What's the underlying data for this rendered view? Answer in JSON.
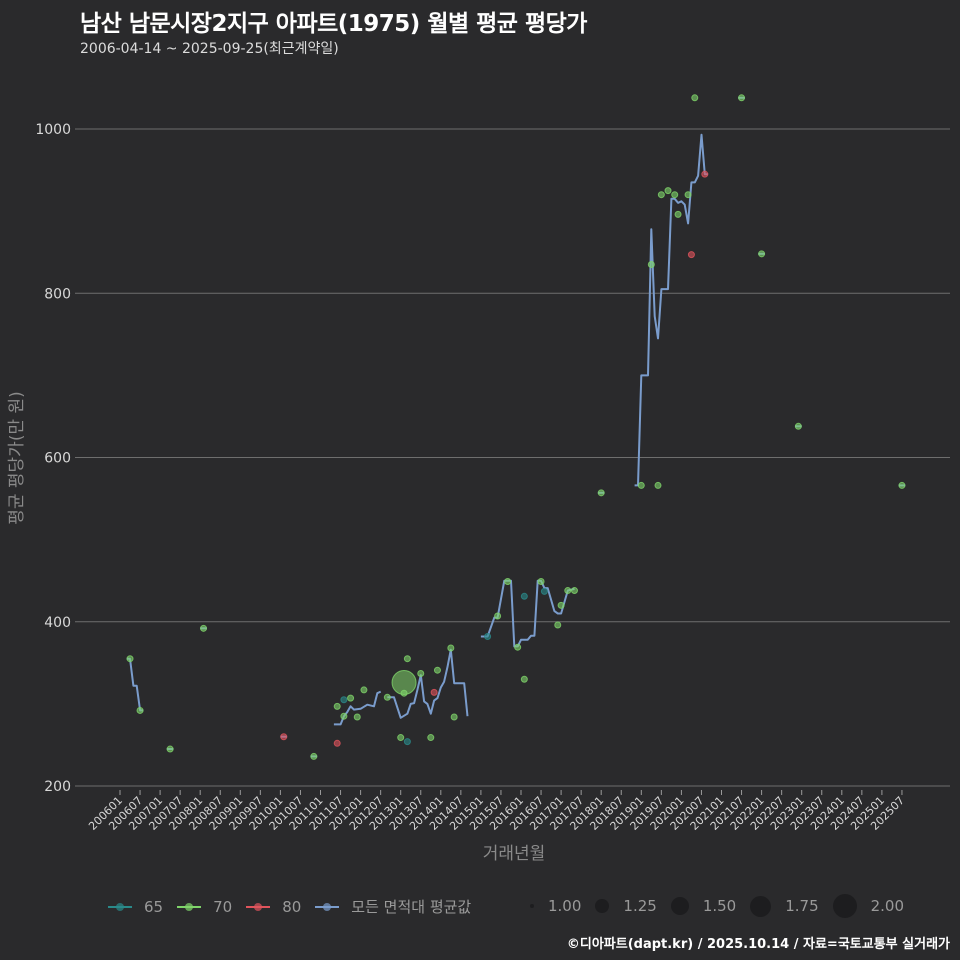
{
  "header": {
    "title": "남산 남문시장2지구 아파트(1975) 월별 평균 평당가",
    "subtitle": "2006-04-14 ~ 2025-09-25(최근계약일)"
  },
  "legend": {
    "area_items": [
      {
        "label": "65",
        "color": "#2a8a8a"
      },
      {
        "label": "70",
        "color": "#7fd46a"
      },
      {
        "label": "80",
        "color": "#e0545c"
      },
      {
        "label": "모든 면적대 평균값",
        "color": "#7a9ccc"
      }
    ],
    "size_items": [
      {
        "label": "1.00",
        "size": 4
      },
      {
        "label": "1.25",
        "size": 14
      },
      {
        "label": "1.50",
        "size": 18
      },
      {
        "label": "1.75",
        "size": 21
      },
      {
        "label": "2.00",
        "size": 24
      }
    ]
  },
  "caption": "©디아파트(dapt.kr) / 2025.10.14 / 자료=국토교통부 실거래가",
  "chart_data": {
    "type": "line+scatter",
    "title": "남산 남문시장2지구 아파트(1975) 월별 평균 평당가",
    "subtitle": "2006-04-14 ~ 2025-09-25(최근계약일)",
    "xlabel": "거래년월",
    "ylabel": "평균 평당가(만 원)",
    "ylim": [
      200,
      1050
    ],
    "yticks": [
      200,
      400,
      600,
      800,
      1000
    ],
    "grid": "horizontal major",
    "legend_position": "bottom",
    "xticks": [
      "200601",
      "200607",
      "200701",
      "200707",
      "200801",
      "200807",
      "200901",
      "200907",
      "201001",
      "201007",
      "201101",
      "201107",
      "201201",
      "201207",
      "201301",
      "201307",
      "201401",
      "201407",
      "201501",
      "201507",
      "201601",
      "201607",
      "201701",
      "201707",
      "201801",
      "201807",
      "201901",
      "201907",
      "202001",
      "202007",
      "202101",
      "202107",
      "202201",
      "202207",
      "202301",
      "202307",
      "202401",
      "202407",
      "202501",
      "202507"
    ],
    "average_line_segments": [
      [
        [
          "200603",
          355
        ],
        [
          "200604",
          355
        ],
        [
          "200605",
          322
        ],
        [
          "200606",
          322
        ],
        [
          "200607",
          292
        ],
        [
          "200608",
          292
        ]
      ],
      [
        [
          "200801",
          392
        ],
        [
          "200803",
          392
        ]
      ],
      [
        [
          "200703",
          245
        ],
        [
          "200705",
          245
        ]
      ],
      [
        [
          "201001",
          260
        ],
        [
          "201003",
          260
        ]
      ],
      [
        [
          "201010",
          236
        ],
        [
          "201012",
          236
        ]
      ],
      [
        [
          "201105",
          275
        ],
        [
          "201107",
          275
        ],
        [
          "201108",
          285
        ],
        [
          "201109",
          290
        ],
        [
          "201110",
          297
        ],
        [
          "201111",
          293
        ],
        [
          "201201",
          294
        ],
        [
          "201203",
          299
        ],
        [
          "201205",
          297
        ],
        [
          "201206",
          313
        ],
        [
          "201207",
          315
        ]
      ],
      [
        [
          "201209",
          308
        ],
        [
          "201211",
          308
        ],
        [
          "201301",
          283
        ],
        [
          "201303",
          288
        ],
        [
          "201304",
          300
        ],
        [
          "201305",
          301
        ],
        [
          "201306",
          317
        ],
        [
          "201307",
          335
        ],
        [
          "201308",
          303
        ],
        [
          "201309",
          300
        ],
        [
          "201310",
          288
        ],
        [
          "201311",
          304
        ],
        [
          "201312",
          307
        ],
        [
          "201401",
          320
        ],
        [
          "201402",
          327
        ],
        [
          "201403",
          345
        ],
        [
          "201404",
          366
        ],
        [
          "201405",
          325
        ],
        [
          "201406",
          325
        ],
        [
          "201408",
          325
        ],
        [
          "201409",
          285
        ]
      ],
      [
        [
          "201501",
          382
        ],
        [
          "201503",
          382
        ],
        [
          "201505",
          405
        ],
        [
          "201506",
          405
        ],
        [
          "201508",
          450
        ],
        [
          "201510",
          450
        ],
        [
          "201511",
          370
        ],
        [
          "201512",
          370
        ],
        [
          "201601",
          378
        ],
        [
          "201603",
          378
        ],
        [
          "201604",
          383
        ],
        [
          "201605",
          383
        ],
        [
          "201606",
          450
        ],
        [
          "201607",
          450
        ],
        [
          "201608",
          441
        ],
        [
          "201609",
          441
        ],
        [
          "201611",
          413
        ],
        [
          "201612",
          410
        ],
        [
          "201701",
          410
        ],
        [
          "201703",
          438
        ],
        [
          "201705",
          440
        ]
      ],
      [
        [
          "201712",
          557
        ],
        [
          "201802",
          557
        ]
      ],
      [
        [
          "201811",
          566
        ],
        [
          "201812",
          566
        ],
        [
          "201901",
          700
        ],
        [
          "201903",
          700
        ],
        [
          "201904",
          878
        ],
        [
          "201905",
          772
        ],
        [
          "201906",
          745
        ],
        [
          "201907",
          805
        ],
        [
          "201909",
          805
        ],
        [
          "201910",
          915
        ],
        [
          "201911",
          915
        ],
        [
          "201912",
          910
        ],
        [
          "202001",
          912
        ],
        [
          "202002",
          908
        ],
        [
          "202003",
          885
        ],
        [
          "202004",
          935
        ],
        [
          "202005",
          935
        ],
        [
          "202006",
          943
        ],
        [
          "202007",
          993
        ],
        [
          "202008",
          945
        ],
        [
          "202009",
          945
        ]
      ],
      [
        [
          "202106",
          1038
        ],
        [
          "202108",
          1038
        ]
      ],
      [
        [
          "202112",
          848
        ],
        [
          "202202",
          848
        ]
      ],
      [
        [
          "202211",
          638
        ],
        [
          "202301",
          638
        ]
      ],
      [
        [
          "202506",
          566
        ],
        [
          "202508",
          566
        ]
      ]
    ],
    "points": [
      {
        "x": "200604",
        "y": 355,
        "area": "70",
        "size": 1
      },
      {
        "x": "200607",
        "y": 292,
        "area": "70",
        "size": 1
      },
      {
        "x": "200704",
        "y": 245,
        "area": "70",
        "size": 1
      },
      {
        "x": "200802",
        "y": 392,
        "area": "70",
        "size": 1
      },
      {
        "x": "201002",
        "y": 260,
        "area": "80",
        "size": 1
      },
      {
        "x": "201011",
        "y": 236,
        "area": "70",
        "size": 1
      },
      {
        "x": "201106",
        "y": 252,
        "area": "80",
        "size": 1
      },
      {
        "x": "201106",
        "y": 297,
        "area": "70",
        "size": 1
      },
      {
        "x": "201108",
        "y": 285,
        "area": "70",
        "size": 1
      },
      {
        "x": "201108",
        "y": 305,
        "area": "65",
        "size": 1
      },
      {
        "x": "201110",
        "y": 307,
        "area": "70",
        "size": 1
      },
      {
        "x": "201112",
        "y": 284,
        "area": "70",
        "size": 1
      },
      {
        "x": "201202",
        "y": 317,
        "area": "70",
        "size": 1
      },
      {
        "x": "201209",
        "y": 308,
        "area": "70",
        "size": 1
      },
      {
        "x": "201301",
        "y": 259,
        "area": "70",
        "size": 1
      },
      {
        "x": "201302",
        "y": 326,
        "area": "70",
        "size": 2
      },
      {
        "x": "201302",
        "y": 313,
        "area": "70",
        "size": 1
      },
      {
        "x": "201303",
        "y": 254,
        "area": "65",
        "size": 1
      },
      {
        "x": "201303",
        "y": 355,
        "area": "70",
        "size": 1
      },
      {
        "x": "201307",
        "y": 337,
        "area": "70",
        "size": 1
      },
      {
        "x": "201310",
        "y": 259,
        "area": "70",
        "size": 1
      },
      {
        "x": "201311",
        "y": 314,
        "area": "80",
        "size": 1
      },
      {
        "x": "201312",
        "y": 341,
        "area": "70",
        "size": 1
      },
      {
        "x": "201404",
        "y": 368,
        "area": "70",
        "size": 1
      },
      {
        "x": "201405",
        "y": 284,
        "area": "70",
        "size": 1
      },
      {
        "x": "201503",
        "y": 382,
        "area": "65",
        "size": 1
      },
      {
        "x": "201506",
        "y": 407,
        "area": "70",
        "size": 1
      },
      {
        "x": "201509",
        "y": 449,
        "area": "70",
        "size": 1
      },
      {
        "x": "201512",
        "y": 369,
        "area": "70",
        "size": 1
      },
      {
        "x": "201602",
        "y": 431,
        "area": "65",
        "size": 1
      },
      {
        "x": "201602",
        "y": 330,
        "area": "70",
        "size": 1
      },
      {
        "x": "201607",
        "y": 449,
        "area": "70",
        "size": 1
      },
      {
        "x": "201608",
        "y": 437,
        "area": "65",
        "size": 1
      },
      {
        "x": "201612",
        "y": 396,
        "area": "70",
        "size": 1
      },
      {
        "x": "201701",
        "y": 420,
        "area": "70",
        "size": 1
      },
      {
        "x": "201703",
        "y": 438,
        "area": "70",
        "size": 1
      },
      {
        "x": "201705",
        "y": 438,
        "area": "70",
        "size": 1
      },
      {
        "x": "201801",
        "y": 557,
        "area": "70",
        "size": 1
      },
      {
        "x": "201901",
        "y": 566,
        "area": "70",
        "size": 1
      },
      {
        "x": "201904",
        "y": 835,
        "area": "70",
        "size": 1
      },
      {
        "x": "201906",
        "y": 566,
        "area": "70",
        "size": 1
      },
      {
        "x": "201907",
        "y": 920,
        "area": "70",
        "size": 1
      },
      {
        "x": "201909",
        "y": 925,
        "area": "70",
        "size": 1
      },
      {
        "x": "201911",
        "y": 920,
        "area": "70",
        "size": 1
      },
      {
        "x": "201912",
        "y": 896,
        "area": "70",
        "size": 1
      },
      {
        "x": "202003",
        "y": 920,
        "area": "70",
        "size": 1
      },
      {
        "x": "202004",
        "y": 847,
        "area": "80",
        "size": 1
      },
      {
        "x": "202005",
        "y": 1038,
        "area": "70",
        "size": 1
      },
      {
        "x": "202008",
        "y": 945,
        "area": "80",
        "size": 1
      },
      {
        "x": "202107",
        "y": 1038,
        "area": "70",
        "size": 1
      },
      {
        "x": "202201",
        "y": 848,
        "area": "70",
        "size": 1
      },
      {
        "x": "202212",
        "y": 638,
        "area": "70",
        "size": 1
      },
      {
        "x": "202507",
        "y": 566,
        "area": "70",
        "size": 1
      }
    ]
  }
}
